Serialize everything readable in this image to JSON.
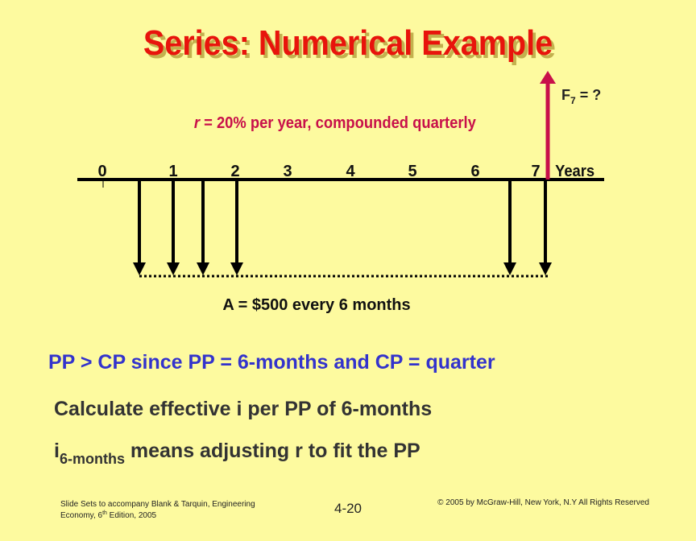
{
  "title": "Series: Numerical Example",
  "rate": {
    "symbol": "r",
    "text": " = 20% per year, compounded quarterly"
  },
  "timeline": {
    "labels": [
      "0",
      "1",
      "2",
      "3",
      "4",
      "5",
      "6",
      "7"
    ],
    "unit": "Years"
  },
  "future": {
    "symbol": "F",
    "subscript": "7",
    "text": " = ?"
  },
  "annuity": "A = $500 every 6 months",
  "bullets": {
    "comparison": "PP > CP since PP = 6-months and CP = quarter",
    "calculate": "Calculate effective i per PP of 6-months",
    "adjust": {
      "symbol": "i",
      "subscript": "6-months",
      "text": " means adjusting r to fit the PP"
    }
  },
  "footer": {
    "left": {
      "line1": "Slide Sets  to accompany Blank & Tarquin, Engineering",
      "line2": "Economy, 6",
      "superscript": "th",
      "line2_end": " Edition, 2005"
    },
    "page": "4-20",
    "right": "© 2005 by McGraw-Hill, New York, N.Y All Rights Reserved"
  }
}
